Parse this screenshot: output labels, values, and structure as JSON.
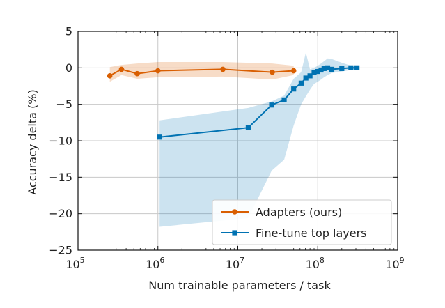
{
  "chart_data": {
    "type": "line",
    "xlabel": "Num trainable parameters / task",
    "ylabel": "Accuracy delta (%)",
    "xscale": "log",
    "xlim": [
      100000,
      1000000000
    ],
    "ylim": [
      -25,
      5
    ],
    "x_ticks": [
      {
        "value": 100000,
        "base": "10",
        "exp": "5"
      },
      {
        "value": 1000000,
        "base": "10",
        "exp": "6"
      },
      {
        "value": 10000000,
        "base": "10",
        "exp": "7"
      },
      {
        "value": 100000000,
        "base": "10",
        "exp": "8"
      },
      {
        "value": 1000000000,
        "base": "10",
        "exp": "9"
      }
    ],
    "y_ticks": [
      {
        "value": 5,
        "label": "5"
      },
      {
        "value": 0,
        "label": "0"
      },
      {
        "value": -5,
        "label": "−5"
      },
      {
        "value": -10,
        "label": "−10"
      },
      {
        "value": -15,
        "label": "−15"
      },
      {
        "value": -20,
        "label": "−20"
      },
      {
        "value": -25,
        "label": "−25"
      }
    ],
    "grid": true,
    "legend_position": "bottom-right",
    "series": [
      {
        "name": "Adapters (ours)",
        "color": "#d95f02",
        "marker": "circle",
        "x": [
          250000,
          350000,
          550000,
          1000000,
          6500000,
          27000000,
          50000000
        ],
        "y": [
          -1.1,
          -0.2,
          -0.8,
          -0.4,
          -0.2,
          -0.6,
          -0.4
        ],
        "band_upper": [
          0.1,
          0.4,
          0.6,
          0.8,
          0.8,
          0.6,
          0.3
        ],
        "band_lower": [
          -1.9,
          -1.0,
          -1.5,
          -1.3,
          -1.2,
          -1.6,
          -1.0
        ]
      },
      {
        "name": "Fine-tune top layers",
        "color": "#0072b2",
        "marker": "square",
        "x": [
          1050000,
          13500000,
          26500000,
          38000000,
          50000000,
          62000000,
          71000000,
          80000000,
          90000000,
          100000000,
          110000000,
          120000000,
          133000000,
          150000000,
          200000000,
          260000000,
          310000000
        ],
        "y": [
          -9.5,
          -8.2,
          -5.1,
          -4.4,
          -2.9,
          -2.1,
          -1.4,
          -1.1,
          -0.6,
          -0.5,
          -0.3,
          -0.1,
          0.0,
          -0.2,
          -0.1,
          0.0,
          0.0
        ],
        "band_upper": [
          -7.2,
          -5.5,
          -4.6,
          -3.8,
          -1.5,
          -0.6,
          2.1,
          -0.2,
          0.0,
          0.3,
          0.6,
          0.9,
          1.3,
          1.2,
          0.7,
          0.3,
          0.1
        ],
        "band_lower": [
          -21.8,
          -20.6,
          -14.1,
          -12.6,
          -7.9,
          -5.0,
          -3.9,
          -3.0,
          -2.2,
          -1.9,
          -1.6,
          -1.3,
          -1.0,
          -0.7,
          -0.5,
          -0.3,
          -0.1
        ]
      }
    ]
  }
}
